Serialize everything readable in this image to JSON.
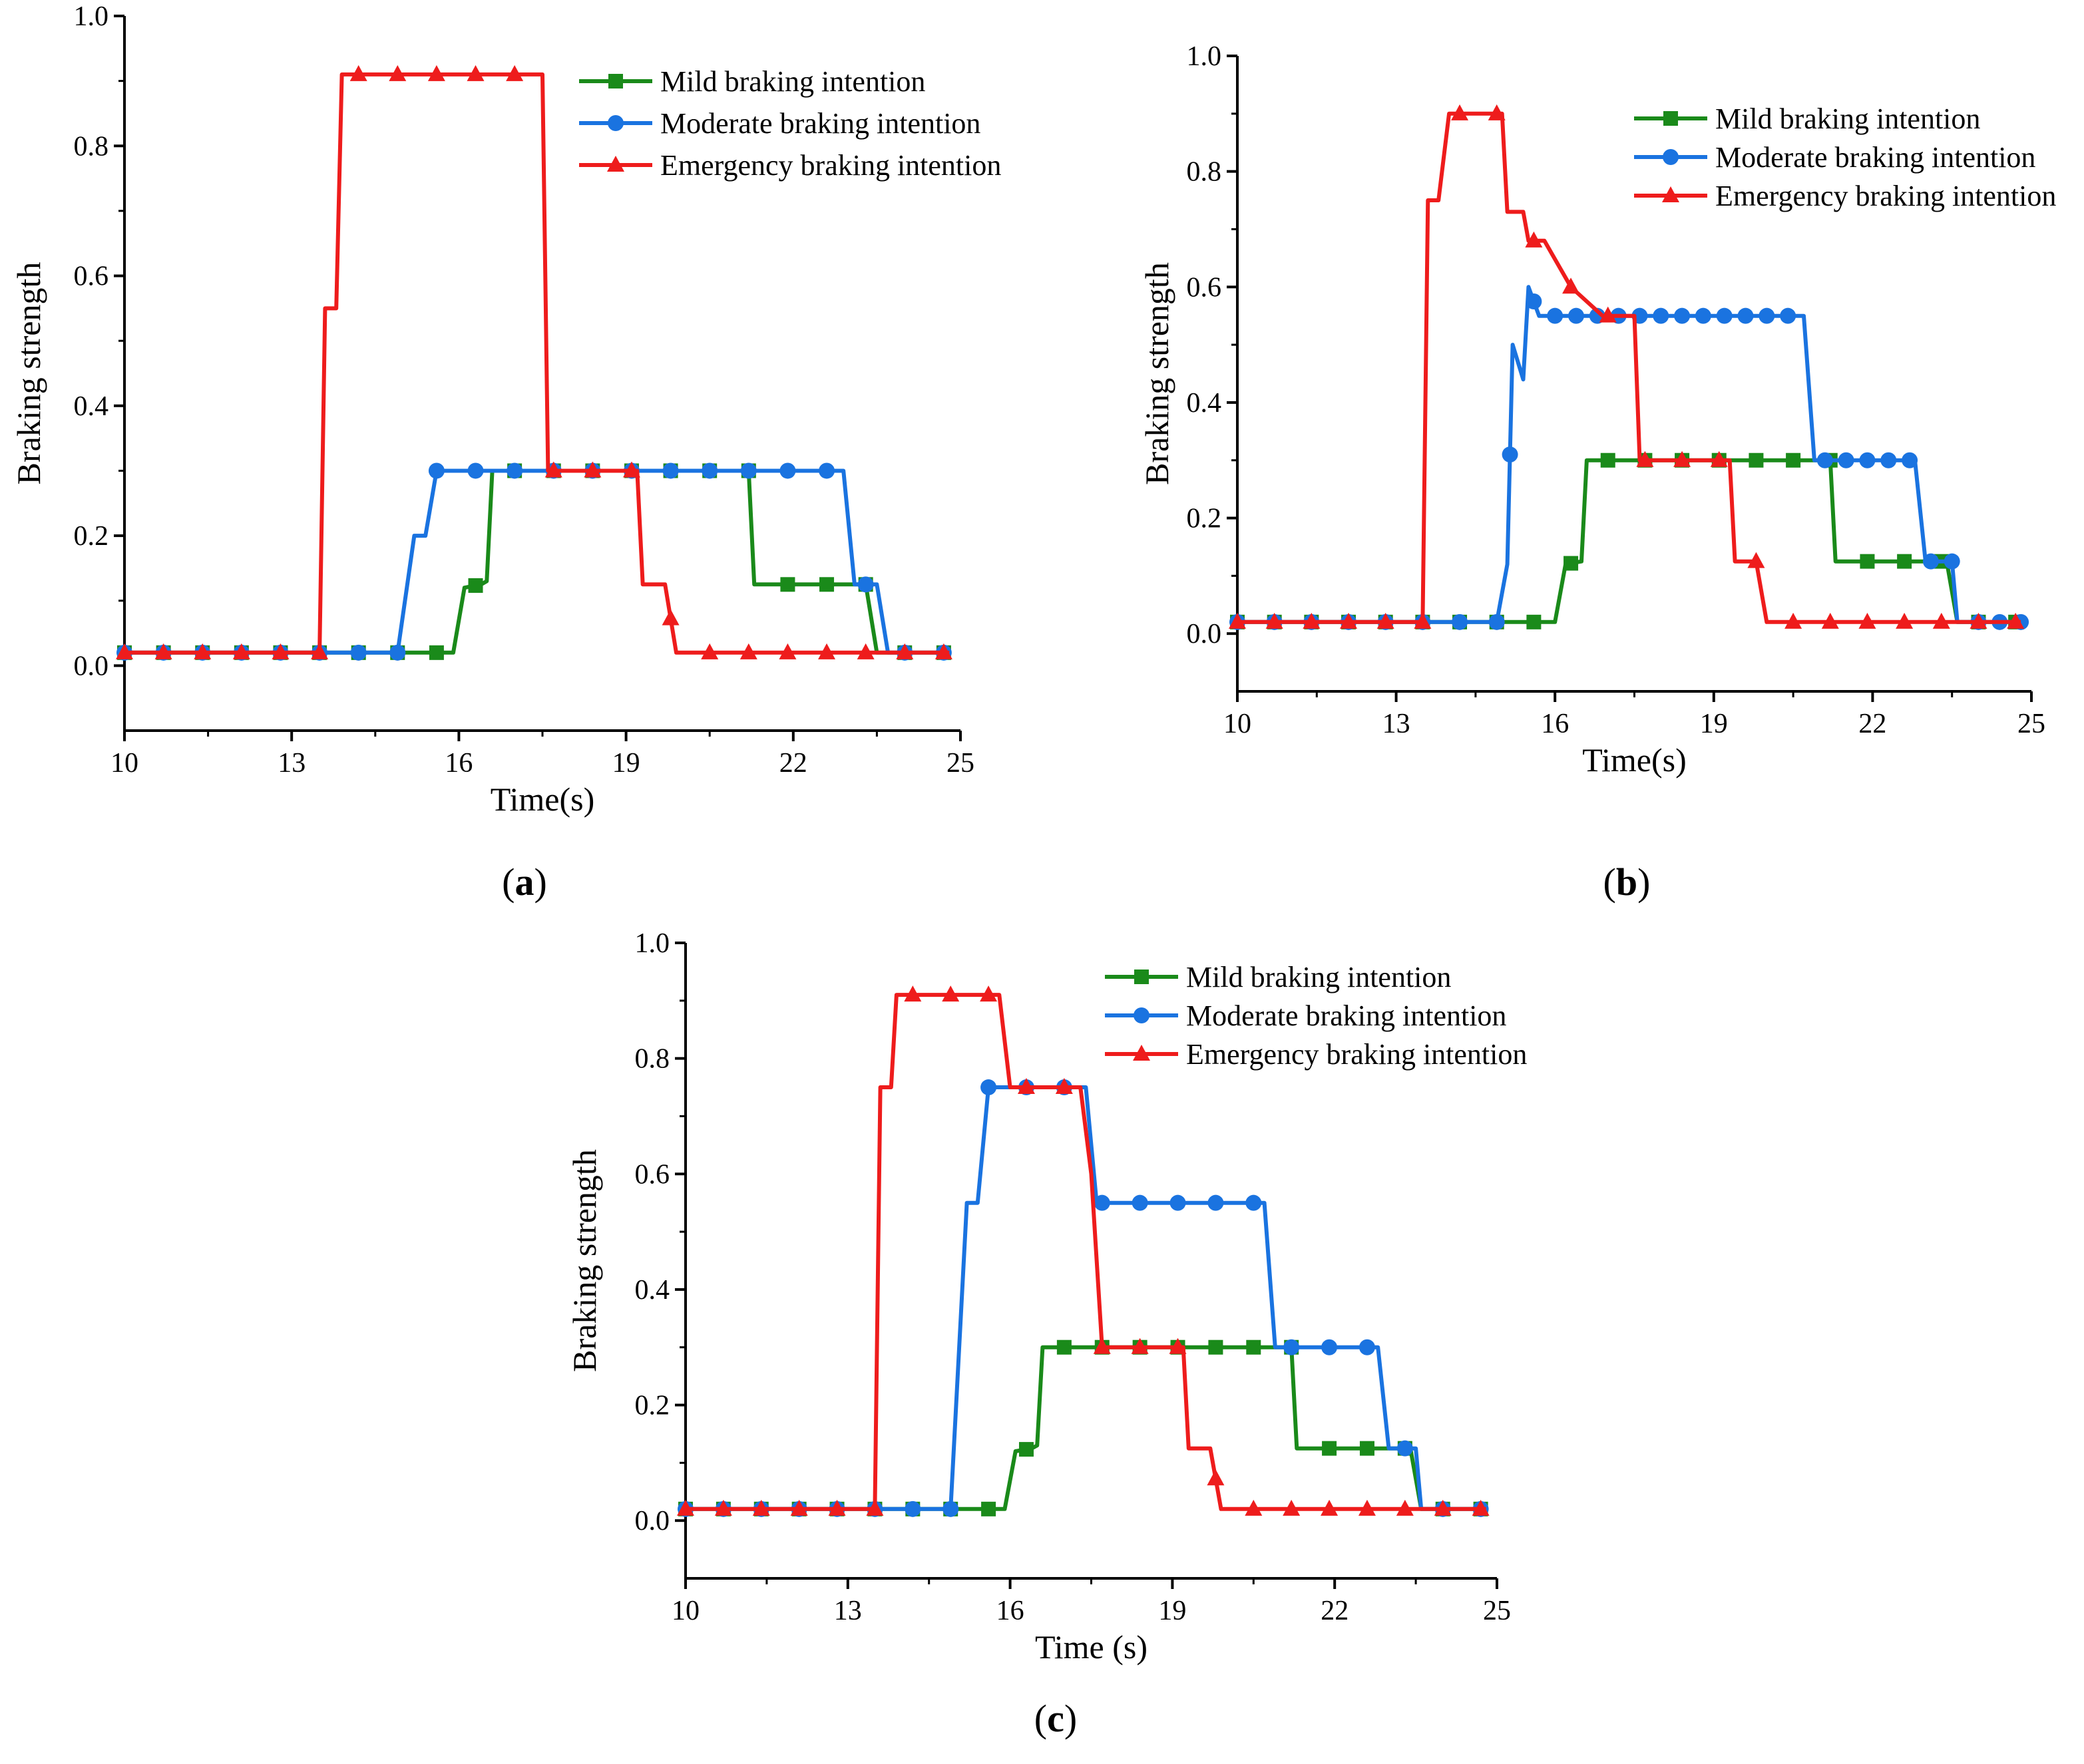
{
  "chart_data": [
    {
      "type": "line",
      "panel_label": "a",
      "xlabel": "Time(s)",
      "ylabel": "Braking strength",
      "xlim": [
        10,
        25
      ],
      "ylim": [
        -0.1,
        1.0
      ],
      "xticks": [
        10,
        13,
        16,
        19,
        22,
        25
      ],
      "xtick_labels": [
        "10",
        "13",
        "16",
        "19",
        "22",
        "25"
      ],
      "yticks": [
        0.0,
        0.2,
        0.4,
        0.6,
        0.8,
        1.0
      ],
      "ytick_labels": [
        "0.0",
        "0.2",
        "0.4",
        "0.6",
        "0.8",
        "1.0"
      ],
      "grid": false,
      "legend_position": "top-right",
      "series": [
        {
          "name": "Mild braking intention",
          "color": "#1a8a1a",
          "marker": "square",
          "x": [
            10,
            15.9,
            16.1,
            16.4,
            16.5,
            16.6,
            21.2,
            21.3,
            23.3,
            23.5,
            23.6,
            24.8
          ],
          "y": [
            0.02,
            0.02,
            0.12,
            0.125,
            0.13,
            0.3,
            0.3,
            0.125,
            0.125,
            0.02,
            0.02,
            0.02
          ],
          "marker_x": [
            10,
            10.7,
            11.4,
            12.1,
            12.8,
            13.5,
            14.2,
            14.9,
            15.6,
            16.3,
            17.0,
            17.7,
            18.4,
            19.1,
            19.8,
            20.5,
            21.2,
            21.9,
            22.6,
            23.3,
            24.0,
            24.7
          ]
        },
        {
          "name": "Moderate braking intention",
          "color": "#1a73e0",
          "marker": "circle",
          "x": [
            10,
            14.9,
            15.2,
            15.4,
            15.6,
            22.9,
            23.1,
            23.5,
            23.7,
            24.8
          ],
          "y": [
            0.02,
            0.02,
            0.2,
            0.2,
            0.3,
            0.3,
            0.125,
            0.125,
            0.02,
            0.02
          ],
          "marker_x": [
            10,
            10.7,
            11.4,
            12.1,
            12.8,
            13.5,
            14.2,
            14.9,
            15.6,
            16.3,
            17.0,
            17.7,
            18.4,
            19.1,
            19.8,
            20.5,
            21.2,
            21.9,
            22.6,
            23.3,
            24.0,
            24.7
          ]
        },
        {
          "name": "Emergency braking intention",
          "color": "#ee1c1c",
          "marker": "triangle",
          "x": [
            10,
            13.5,
            13.6,
            13.8,
            13.9,
            17.5,
            17.6,
            19.2,
            19.3,
            19.7,
            19.9,
            24.8
          ],
          "y": [
            0.02,
            0.02,
            0.55,
            0.55,
            0.91,
            0.91,
            0.3,
            0.3,
            0.125,
            0.125,
            0.02,
            0.02
          ],
          "marker_x": [
            10,
            10.7,
            11.4,
            12.1,
            12.8,
            13.5,
            14.2,
            14.9,
            15.6,
            16.3,
            17.0,
            17.7,
            18.4,
            19.1,
            19.8,
            20.5,
            21.2,
            21.9,
            22.6,
            23.3,
            24.0,
            24.7
          ]
        }
      ]
    },
    {
      "type": "line",
      "panel_label": "b",
      "xlabel": "Time(s)",
      "ylabel": "Braking strength",
      "xlim": [
        10,
        25
      ],
      "ylim": [
        -0.1,
        1.0
      ],
      "xticks": [
        10,
        13,
        16,
        19,
        22,
        25
      ],
      "xtick_labels": [
        "10",
        "13",
        "16",
        "19",
        "22",
        "25"
      ],
      "yticks": [
        0.0,
        0.2,
        0.4,
        0.6,
        0.8,
        1.0
      ],
      "ytick_labels": [
        "0.0",
        "0.2",
        "0.4",
        "0.6",
        "0.8",
        "1.0"
      ],
      "grid": false,
      "legend_position": "top-right",
      "series": [
        {
          "name": "Mild braking intention",
          "color": "#1a8a1a",
          "marker": "square",
          "x": [
            10,
            15.0,
            16.0,
            16.2,
            16.5,
            16.6,
            21.2,
            21.3,
            23.4,
            23.6,
            24.8
          ],
          "y": [
            0.02,
            0.02,
            0.02,
            0.12,
            0.125,
            0.3,
            0.3,
            0.125,
            0.125,
            0.02,
            0.02
          ],
          "marker_x": [
            10,
            10.7,
            11.4,
            12.1,
            12.8,
            13.5,
            14.2,
            14.9,
            15.6,
            16.3,
            17.0,
            17.7,
            18.4,
            19.1,
            19.8,
            20.5,
            21.2,
            21.9,
            22.6,
            23.3,
            24.0,
            24.7
          ]
        },
        {
          "name": "Moderate braking intention",
          "color": "#1a73e0",
          "marker": "circle",
          "x": [
            10,
            14.9,
            15.1,
            15.2,
            15.4,
            15.5,
            15.7,
            20.7,
            20.9,
            22.8,
            23.0,
            23.5,
            23.6,
            24.8
          ],
          "y": [
            0.02,
            0.02,
            0.12,
            0.5,
            0.44,
            0.6,
            0.55,
            0.55,
            0.3,
            0.3,
            0.125,
            0.125,
            0.02,
            0.02
          ],
          "marker_x": [
            10,
            10.7,
            11.4,
            12.1,
            12.8,
            13.5,
            14.2,
            14.9,
            15.15,
            15.6,
            16.0,
            16.4,
            16.8,
            17.2,
            17.6,
            18.0,
            18.4,
            18.8,
            19.2,
            19.6,
            20.0,
            20.4,
            21.1,
            21.5,
            21.9,
            22.3,
            22.7,
            23.1,
            23.5,
            24.0,
            24.4,
            24.8
          ]
        },
        {
          "name": "Emergency braking intention",
          "color": "#ee1c1c",
          "marker": "triangle",
          "x": [
            10,
            13.5,
            13.6,
            13.8,
            14.0,
            15.0,
            15.1,
            15.4,
            15.5,
            15.8,
            16.3,
            16.9,
            17.5,
            17.6,
            19.3,
            19.4,
            19.8,
            20.0,
            24.8
          ],
          "y": [
            0.02,
            0.02,
            0.75,
            0.75,
            0.9,
            0.9,
            0.73,
            0.73,
            0.68,
            0.68,
            0.6,
            0.55,
            0.55,
            0.3,
            0.3,
            0.125,
            0.125,
            0.02,
            0.02
          ],
          "marker_x": [
            10,
            10.7,
            11.4,
            12.1,
            12.8,
            13.5,
            14.2,
            14.9,
            15.6,
            16.3,
            17.0,
            17.7,
            18.4,
            19.1,
            19.8,
            20.5,
            21.2,
            21.9,
            22.6,
            23.3,
            24.0,
            24.7
          ]
        }
      ]
    },
    {
      "type": "line",
      "panel_label": "c",
      "xlabel": "Time (s)",
      "ylabel": "Braking strength",
      "xlim": [
        10,
        25
      ],
      "ylim": [
        -0.1,
        1.0
      ],
      "xticks": [
        10,
        13,
        16,
        19,
        22,
        25
      ],
      "xtick_labels": [
        "10",
        "13",
        "16",
        "19",
        "22",
        "25"
      ],
      "yticks": [
        0.0,
        0.2,
        0.4,
        0.6,
        0.8,
        1.0
      ],
      "ytick_labels": [
        "0.0",
        "0.2",
        "0.4",
        "0.6",
        "0.8",
        "1.0"
      ],
      "grid": false,
      "legend_position": "top-right",
      "series": [
        {
          "name": "Mild braking intention",
          "color": "#1a8a1a",
          "marker": "square",
          "x": [
            10,
            15.9,
            16.1,
            16.4,
            16.5,
            16.6,
            21.2,
            21.3,
            23.4,
            23.6,
            24.8
          ],
          "y": [
            0.02,
            0.02,
            0.12,
            0.125,
            0.13,
            0.3,
            0.3,
            0.125,
            0.125,
            0.02,
            0.02
          ],
          "marker_x": [
            10,
            10.7,
            11.4,
            12.1,
            12.8,
            13.5,
            14.2,
            14.9,
            15.6,
            16.3,
            17.0,
            17.7,
            18.4,
            19.1,
            19.8,
            20.5,
            21.2,
            21.9,
            22.6,
            23.3,
            24.0,
            24.7
          ]
        },
        {
          "name": "Moderate braking intention",
          "color": "#1a73e0",
          "marker": "circle",
          "x": [
            10,
            14.9,
            15.2,
            15.4,
            15.6,
            17.4,
            17.6,
            20.7,
            20.9,
            22.8,
            23.0,
            23.5,
            23.6,
            24.8
          ],
          "y": [
            0.02,
            0.02,
            0.55,
            0.55,
            0.75,
            0.75,
            0.55,
            0.55,
            0.3,
            0.3,
            0.125,
            0.125,
            0.02,
            0.02
          ],
          "marker_x": [
            10,
            10.7,
            11.4,
            12.1,
            12.8,
            13.5,
            14.2,
            14.9,
            15.6,
            16.3,
            17.0,
            17.7,
            18.4,
            19.1,
            19.8,
            20.5,
            21.2,
            21.9,
            22.6,
            23.3,
            24.0,
            24.7
          ]
        },
        {
          "name": "Emergency braking intention",
          "color": "#ee1c1c",
          "marker": "triangle",
          "x": [
            10,
            13.5,
            13.6,
            13.8,
            13.9,
            15.8,
            16.0,
            17.3,
            17.5,
            17.7,
            19.2,
            19.3,
            19.7,
            19.9,
            24.8
          ],
          "y": [
            0.02,
            0.02,
            0.75,
            0.75,
            0.91,
            0.91,
            0.75,
            0.75,
            0.6,
            0.3,
            0.3,
            0.125,
            0.125,
            0.02,
            0.02
          ],
          "marker_x": [
            10,
            10.7,
            11.4,
            12.1,
            12.8,
            13.5,
            14.2,
            14.9,
            15.6,
            16.3,
            17.0,
            17.7,
            18.4,
            19.1,
            19.8,
            20.5,
            21.2,
            21.9,
            22.6,
            23.3,
            24.0,
            24.7
          ]
        }
      ]
    }
  ]
}
